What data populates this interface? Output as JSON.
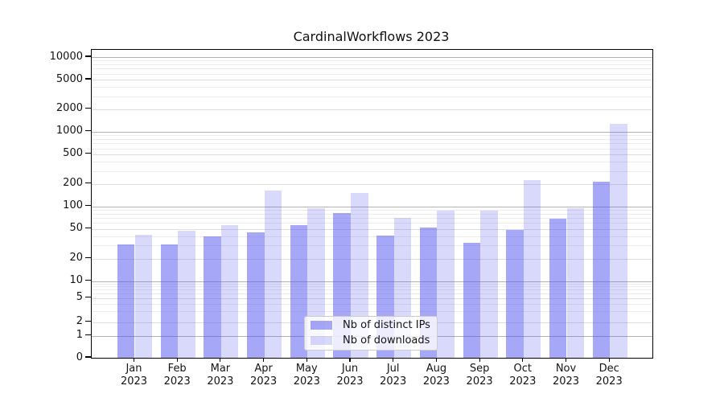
{
  "chart_data": {
    "type": "bar",
    "title": "CardinalWorkflows 2023",
    "categories": [
      "Jan 2023",
      "Feb 2023",
      "Mar 2023",
      "Apr 2023",
      "May 2023",
      "Jun 2023",
      "Jul 2023",
      "Aug 2023",
      "Sep 2023",
      "Oct 2023",
      "Nov 2023",
      "Dec 2023"
    ],
    "series": [
      {
        "name": "Nb of distinct IPs",
        "color": "rgba(80,80,240,0.5)",
        "values": [
          31,
          31,
          40,
          45,
          57,
          81,
          41,
          52,
          33,
          48,
          68,
          213
        ]
      },
      {
        "name": "Nb of downloads",
        "color": "rgba(80,80,240,0.22)",
        "values": [
          42,
          47,
          57,
          165,
          94,
          150,
          71,
          88,
          88,
          223,
          94,
          1290
        ]
      }
    ],
    "yscale": "symlog",
    "yticks": [
      0,
      1,
      2,
      5,
      10,
      20,
      50,
      100,
      200,
      500,
      1000,
      2000,
      5000,
      10000
    ],
    "ylim": [
      0,
      10000
    ],
    "grid": true,
    "legend": {
      "position": "lower center"
    }
  },
  "colors": {
    "background": "#ffffff",
    "bar_distinct_ips": "rgba(80,80,240,0.5)",
    "bar_downloads": "rgba(80,80,240,0.22)",
    "grid_major": "#b3b3b3",
    "grid_mid": "#dedede",
    "grid_minor": "#ececec",
    "axis": "#000000"
  }
}
